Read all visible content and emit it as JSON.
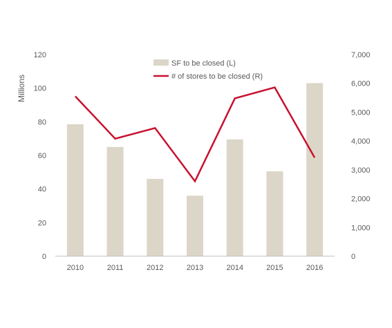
{
  "chart_data": {
    "type": "bar",
    "categories": [
      "2010",
      "2011",
      "2012",
      "2013",
      "2014",
      "2015",
      "2016"
    ],
    "series": [
      {
        "name": "SF to be closed (L)",
        "type": "bar",
        "axis": "left",
        "color": "#dcd6c8",
        "values": [
          78.5,
          65,
          46,
          36,
          69.5,
          50.5,
          103
        ]
      },
      {
        "name": "# of stores to be closed (R)",
        "type": "line",
        "axis": "right",
        "color": "#c8102e",
        "values": [
          5550,
          4080,
          4450,
          2600,
          5480,
          5860,
          3420
        ]
      }
    ],
    "ylabel": "Millions",
    "ylim": [
      0,
      120
    ],
    "y_ticks": [
      "0",
      "20",
      "40",
      "60",
      "80",
      "100",
      "120"
    ],
    "y2lim": [
      0,
      7000
    ],
    "y2_ticks": [
      "0",
      "1,000",
      "2,000",
      "3,000",
      "4,000",
      "5,000",
      "6,000",
      "7,000"
    ],
    "grid": false,
    "legend_position": "top-center"
  }
}
